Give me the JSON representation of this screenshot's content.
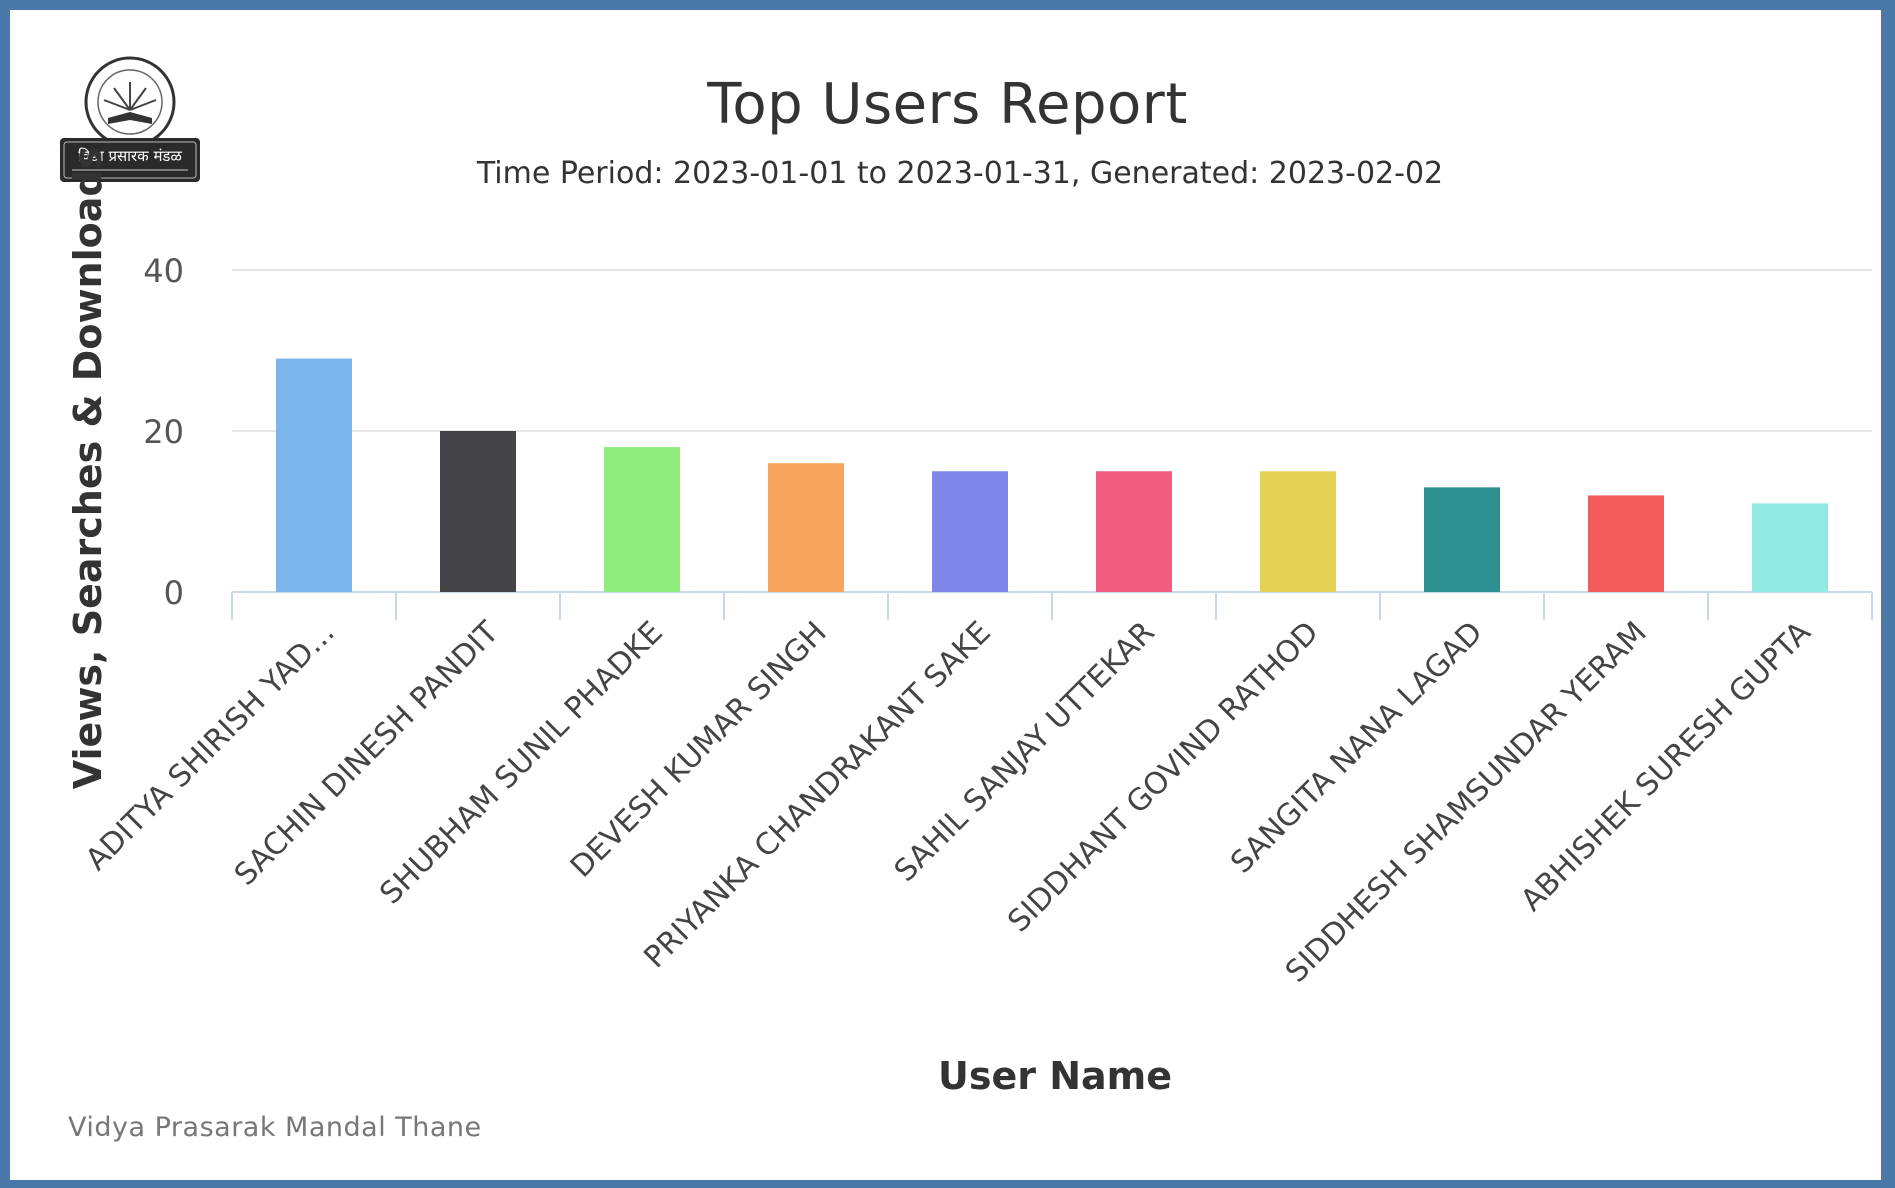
{
  "page": {
    "credits": "Vidya Prasarak Mandal Thane",
    "logo_text": "विद्या प्रसारक मंडळ"
  },
  "chart_data": {
    "type": "bar",
    "title": "Top Users Report",
    "subtitle": "Time Period: 2023-01-01 to 2023-01-31, Generated: 2023-02-02",
    "xlabel": "User Name",
    "ylabel": "Views, Searches & Downloads",
    "ylim": [
      0,
      40
    ],
    "yticks": [
      0,
      20,
      40
    ],
    "grid": true,
    "legend": "none",
    "categories": [
      "ADITYA SHIRISH YAD...",
      "SACHIN DINESH PANDIT",
      "SHUBHAM SUNIL PHADKE",
      "DEVESH KUMAR SINGH",
      "PRIYANKA CHANDRAKANT SAKE",
      "SAHIL SANJAY UTTEKAR",
      "SIDDHANT GOVIND RATHOD",
      "SANGITA NANA LAGAD",
      "SIDDHESH SHAMSUNDAR YERAM",
      "ABHISHEK SURESH GUPTA"
    ],
    "values": [
      29,
      20,
      18,
      16,
      15,
      15,
      15,
      13,
      12,
      11
    ],
    "colors": [
      "#7cb5ec",
      "#434348",
      "#90ed7d",
      "#f7a35c",
      "#8085e9",
      "#f15c80",
      "#e4d354",
      "#2b908f",
      "#f45b5b",
      "#91e8e1"
    ]
  }
}
